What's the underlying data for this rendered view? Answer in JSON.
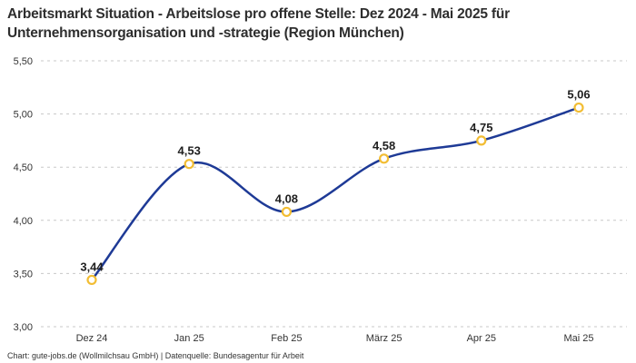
{
  "header": {
    "title_line1": "Arbeitsmarkt Situation - Arbeitslose pro offene Stelle: Dez 2024 - Mai 2025 für",
    "title_line2": "Unternehmensorganisation und -strategie (Region München)"
  },
  "footer": {
    "text": "Chart: gute-jobs.de (Wollmilchsau GmbH) | Datenquelle: Bundesagentur für Arbeit"
  },
  "chart_data": {
    "type": "line",
    "title": "Arbeitsmarkt Situation - Arbeitslose pro offene Stelle: Dez 2024 - Mai 2025 für Unternehmensorganisation und -strategie (Region München)",
    "categories": [
      "Dez 24",
      "Jan 25",
      "Feb 25",
      "März 25",
      "Apr 25",
      "Mai 25"
    ],
    "values": [
      3.44,
      4.53,
      4.08,
      4.58,
      4.75,
      5.06
    ],
    "point_labels": [
      "3,44",
      "4,53",
      "4,08",
      "4,58",
      "4,75",
      "5,06"
    ],
    "xlabel": "",
    "ylabel": "",
    "ylim": [
      3.0,
      5.5
    ],
    "yticks": [
      3.0,
      3.5,
      4.0,
      4.5,
      5.0,
      5.5
    ],
    "ytick_labels": [
      "3,00",
      "3,50",
      "4,00",
      "4,50",
      "5,00",
      "5,50"
    ],
    "grid": "horizontal-dashed",
    "legend": "none",
    "line_style": "spline",
    "colors": {
      "line": "#1e3a96",
      "marker_stroke": "#f2bd33",
      "marker_fill": "#ffffff",
      "grid": "#c8c8c8",
      "data_label": "#1f1f1f",
      "tick_label": "#333333",
      "title": "#2e2e2e",
      "background": "#ffffff"
    }
  }
}
